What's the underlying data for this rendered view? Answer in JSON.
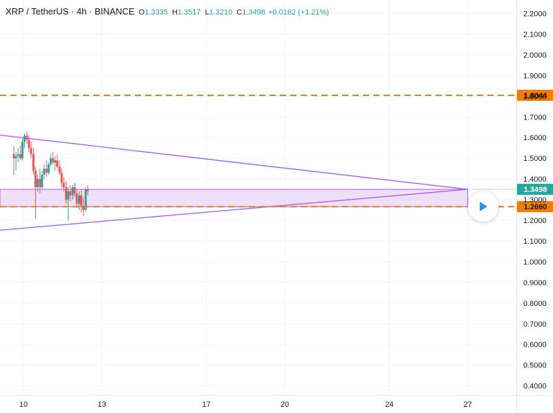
{
  "header": {
    "symbol": "XRP / TetherUS · 4h · BINANCE",
    "open_key": "O",
    "open_val": "1.3335",
    "high_key": "H",
    "high_val": "1.3517",
    "low_key": "L",
    "low_val": "1.3210",
    "close_key": "C",
    "close_val": "1.3498",
    "change": "+0.0162 (+1.21%)"
  },
  "colors": {
    "up": "#26a69a",
    "down": "#ef5350",
    "level": "#f57c00",
    "pattern": "#a855f7",
    "zone_fill": "#e9d5f7",
    "axis_text": "#131722",
    "play": "#2196f3"
  },
  "controls": {
    "play_icon": "play-icon"
  },
  "chart_data": {
    "type": "candlestick",
    "title": "XRP / TetherUS · 4h · BINANCE",
    "ylim": [
      0.35,
      2.25
    ],
    "y_ticks": [
      "2.2000",
      "2.1000",
      "2.0000",
      "1.9000",
      "1.8000",
      "1.7000",
      "1.6000",
      "1.5000",
      "1.4000",
      "1.3000",
      "1.2000",
      "1.1000",
      "1.0000",
      "0.9000",
      "0.8000",
      "0.7000",
      "0.6000",
      "0.5000",
      "0.4000"
    ],
    "x_ticks": [
      {
        "label": "10",
        "day": 10
      },
      {
        "label": "13",
        "day": 13
      },
      {
        "label": "17",
        "day": 17
      },
      {
        "label": "20",
        "day": 20
      },
      {
        "label": "24",
        "day": 24
      },
      {
        "label": "27",
        "day": 27
      }
    ],
    "x_range_days": [
      9.7,
      28.0
    ],
    "candles": [
      {
        "day": 9.63,
        "o": 1.52,
        "h": 1.56,
        "l": 1.42,
        "c": 1.5
      },
      {
        "day": 9.71,
        "o": 1.5,
        "h": 1.53,
        "l": 1.44,
        "c": 1.51
      },
      {
        "day": 9.79,
        "o": 1.51,
        "h": 1.55,
        "l": 1.48,
        "c": 1.52
      },
      {
        "day": 9.88,
        "o": 1.52,
        "h": 1.56,
        "l": 1.49,
        "c": 1.5
      },
      {
        "day": 9.96,
        "o": 1.5,
        "h": 1.6,
        "l": 1.49,
        "c": 1.58
      },
      {
        "day": 10.04,
        "o": 1.58,
        "h": 1.62,
        "l": 1.55,
        "c": 1.61
      },
      {
        "day": 10.13,
        "o": 1.61,
        "h": 1.63,
        "l": 1.57,
        "c": 1.59
      },
      {
        "day": 10.21,
        "o": 1.59,
        "h": 1.61,
        "l": 1.53,
        "c": 1.55
      },
      {
        "day": 10.29,
        "o": 1.55,
        "h": 1.58,
        "l": 1.5,
        "c": 1.52
      },
      {
        "day": 10.38,
        "o": 1.52,
        "h": 1.55,
        "l": 1.42,
        "c": 1.44
      },
      {
        "day": 10.46,
        "o": 1.44,
        "h": 1.46,
        "l": 1.21,
        "c": 1.36
      },
      {
        "day": 10.54,
        "o": 1.36,
        "h": 1.42,
        "l": 1.34,
        "c": 1.4
      },
      {
        "day": 10.63,
        "o": 1.4,
        "h": 1.45,
        "l": 1.33,
        "c": 1.36
      },
      {
        "day": 10.71,
        "o": 1.36,
        "h": 1.44,
        "l": 1.35,
        "c": 1.42
      },
      {
        "day": 10.79,
        "o": 1.42,
        "h": 1.47,
        "l": 1.4,
        "c": 1.45
      },
      {
        "day": 10.88,
        "o": 1.45,
        "h": 1.49,
        "l": 1.41,
        "c": 1.43
      },
      {
        "day": 10.96,
        "o": 1.43,
        "h": 1.48,
        "l": 1.42,
        "c": 1.47
      },
      {
        "day": 11.04,
        "o": 1.47,
        "h": 1.52,
        "l": 1.46,
        "c": 1.5
      },
      {
        "day": 11.13,
        "o": 1.5,
        "h": 1.53,
        "l": 1.47,
        "c": 1.48
      },
      {
        "day": 11.21,
        "o": 1.48,
        "h": 1.51,
        "l": 1.44,
        "c": 1.49
      },
      {
        "day": 11.29,
        "o": 1.49,
        "h": 1.52,
        "l": 1.45,
        "c": 1.46
      },
      {
        "day": 11.38,
        "o": 1.46,
        "h": 1.49,
        "l": 1.42,
        "c": 1.43
      },
      {
        "day": 11.46,
        "o": 1.43,
        "h": 1.45,
        "l": 1.36,
        "c": 1.38
      },
      {
        "day": 11.54,
        "o": 1.38,
        "h": 1.41,
        "l": 1.34,
        "c": 1.36
      },
      {
        "day": 11.63,
        "o": 1.36,
        "h": 1.39,
        "l": 1.28,
        "c": 1.3
      },
      {
        "day": 11.71,
        "o": 1.3,
        "h": 1.36,
        "l": 1.2,
        "c": 1.34
      },
      {
        "day": 11.79,
        "o": 1.34,
        "h": 1.37,
        "l": 1.29,
        "c": 1.32
      },
      {
        "day": 11.88,
        "o": 1.32,
        "h": 1.37,
        "l": 1.3,
        "c": 1.36
      },
      {
        "day": 11.96,
        "o": 1.36,
        "h": 1.38,
        "l": 1.31,
        "c": 1.33
      },
      {
        "day": 12.04,
        "o": 1.33,
        "h": 1.35,
        "l": 1.26,
        "c": 1.28
      },
      {
        "day": 12.13,
        "o": 1.28,
        "h": 1.34,
        "l": 1.25,
        "c": 1.32
      },
      {
        "day": 12.21,
        "o": 1.32,
        "h": 1.35,
        "l": 1.24,
        "c": 1.27
      },
      {
        "day": 12.29,
        "o": 1.27,
        "h": 1.31,
        "l": 1.22,
        "c": 1.25
      },
      {
        "day": 12.38,
        "o": 1.25,
        "h": 1.36,
        "l": 1.24,
        "c": 1.35
      },
      {
        "day": 12.46,
        "o": 1.35,
        "h": 1.37,
        "l": 1.32,
        "c": 1.34
      }
    ],
    "lines": [
      {
        "name": "",
        "kind": "level",
        "value": 1.8044,
        "label": "1.8044"
      },
      {
        "name": "",
        "kind": "level",
        "value": 1.266,
        "label": "1.2660"
      },
      {
        "name": "",
        "kind": "current_price",
        "value": 1.3498,
        "label": "1.3498"
      }
    ],
    "triangle": {
      "upper": [
        {
          "day": 9.7,
          "price": 1.612
        },
        {
          "day": 27.0,
          "price": 1.3498
        }
      ],
      "lower": [
        {
          "day": 9.7,
          "price": 1.152
        },
        {
          "day": 27.0,
          "price": 1.3498
        }
      ]
    },
    "zone": {
      "day_start": 9.7,
      "day_end": 27.0,
      "top": 1.3498,
      "bottom": 1.266
    }
  }
}
